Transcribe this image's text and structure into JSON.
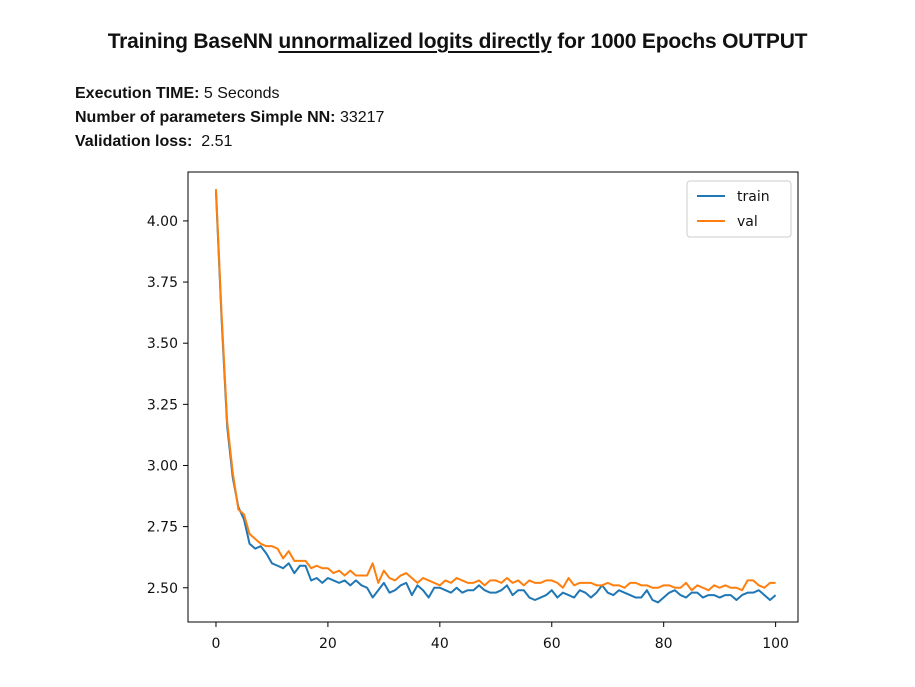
{
  "header": {
    "title_prefix": "Training BaseNN ",
    "title_underlined": "unnormalized logits directly",
    "title_suffix": " for 1000 Epochs OUTPUT",
    "lines": [
      {
        "label": "Execution TIME:",
        "value": " 5 Seconds"
      },
      {
        "label": "Number of parameters Simple NN:",
        "value": " 33217"
      },
      {
        "label": "Validation loss:",
        "value": "  2.51"
      }
    ]
  },
  "colors": {
    "train": "#1f77b4",
    "val": "#ff7f0e"
  },
  "chart_data": {
    "type": "line",
    "title": "",
    "xlabel": "",
    "ylabel": "",
    "xlim": [
      -5,
      104
    ],
    "ylim": [
      2.36,
      4.2
    ],
    "xticks": [
      "0",
      "20",
      "40",
      "60",
      "80",
      "100"
    ],
    "yticks": [
      "2.50",
      "2.75",
      "3.00",
      "3.25",
      "3.50",
      "3.75",
      "4.00"
    ],
    "legend": "top-right",
    "series": [
      {
        "name": "train",
        "values": [
          4.12,
          3.6,
          3.16,
          2.95,
          2.83,
          2.78,
          2.68,
          2.66,
          2.67,
          2.64,
          2.6,
          2.59,
          2.58,
          2.6,
          2.56,
          2.59,
          2.59,
          2.53,
          2.54,
          2.52,
          2.54,
          2.53,
          2.52,
          2.53,
          2.51,
          2.53,
          2.51,
          2.5,
          2.46,
          2.49,
          2.52,
          2.48,
          2.49,
          2.51,
          2.52,
          2.47,
          2.51,
          2.49,
          2.46,
          2.5,
          2.5,
          2.49,
          2.48,
          2.5,
          2.48,
          2.49,
          2.49,
          2.51,
          2.49,
          2.48,
          2.48,
          2.49,
          2.51,
          2.47,
          2.49,
          2.49,
          2.46,
          2.45,
          2.46,
          2.47,
          2.49,
          2.46,
          2.48,
          2.47,
          2.46,
          2.49,
          2.48,
          2.46,
          2.48,
          2.51,
          2.48,
          2.47,
          2.49,
          2.48,
          2.47,
          2.46,
          2.46,
          2.49,
          2.45,
          2.44,
          2.46,
          2.48,
          2.49,
          2.47,
          2.46,
          2.48,
          2.48,
          2.46,
          2.47,
          2.47,
          2.46,
          2.47,
          2.47,
          2.45,
          2.47,
          2.48,
          2.48,
          2.49,
          2.47,
          2.45,
          2.47
        ]
      },
      {
        "name": "val",
        "values": [
          4.13,
          3.62,
          3.18,
          2.97,
          2.82,
          2.8,
          2.72,
          2.7,
          2.68,
          2.67,
          2.67,
          2.66,
          2.62,
          2.65,
          2.61,
          2.61,
          2.61,
          2.58,
          2.59,
          2.58,
          2.58,
          2.56,
          2.57,
          2.55,
          2.57,
          2.55,
          2.55,
          2.55,
          2.6,
          2.52,
          2.57,
          2.54,
          2.53,
          2.55,
          2.56,
          2.54,
          2.52,
          2.54,
          2.53,
          2.52,
          2.51,
          2.53,
          2.52,
          2.54,
          2.53,
          2.52,
          2.52,
          2.53,
          2.51,
          2.53,
          2.53,
          2.52,
          2.54,
          2.52,
          2.53,
          2.51,
          2.53,
          2.52,
          2.52,
          2.53,
          2.53,
          2.52,
          2.5,
          2.54,
          2.51,
          2.52,
          2.52,
          2.52,
          2.51,
          2.51,
          2.52,
          2.51,
          2.51,
          2.5,
          2.52,
          2.52,
          2.51,
          2.51,
          2.5,
          2.5,
          2.51,
          2.51,
          2.5,
          2.5,
          2.52,
          2.49,
          2.51,
          2.5,
          2.49,
          2.51,
          2.5,
          2.51,
          2.5,
          2.5,
          2.49,
          2.53,
          2.53,
          2.51,
          2.5,
          2.52,
          2.52
        ]
      }
    ]
  }
}
